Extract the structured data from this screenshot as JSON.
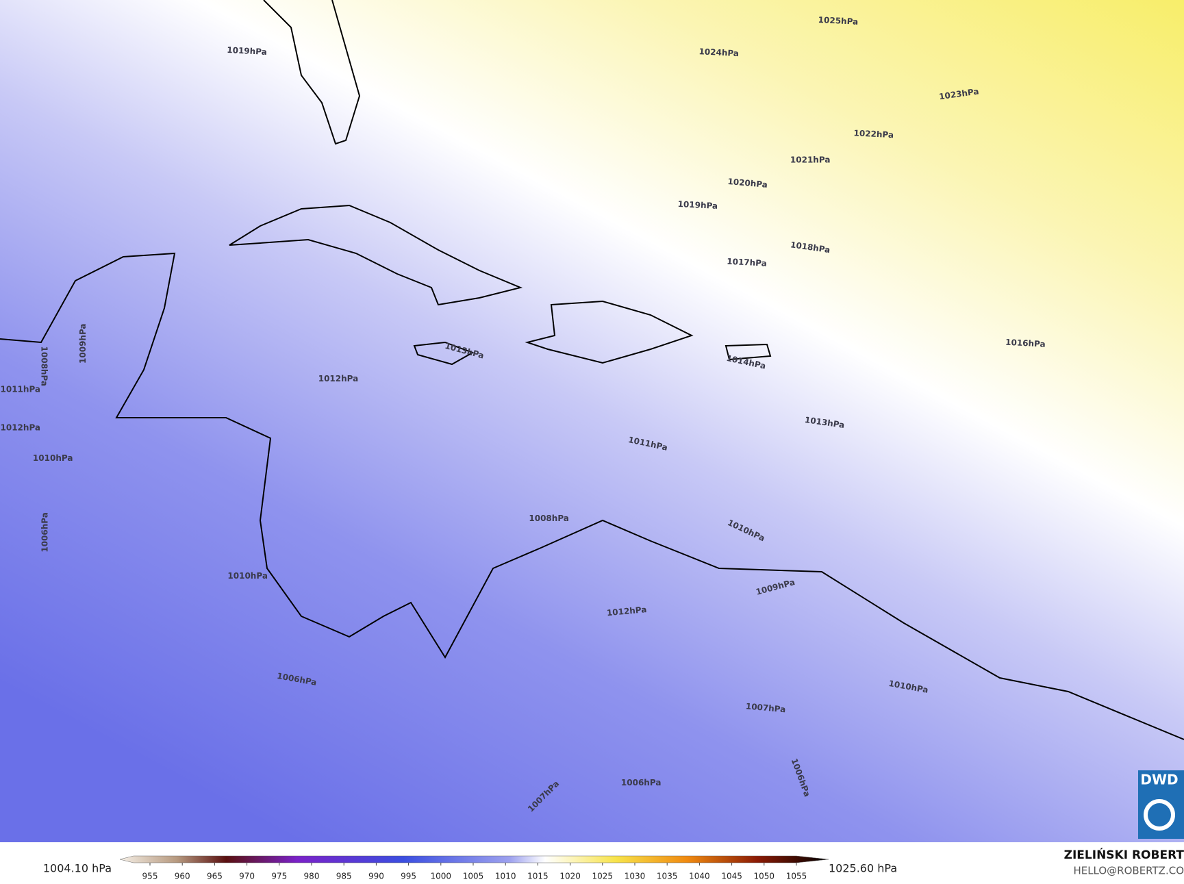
{
  "map": {
    "isobar_labels": [
      "1025hPa",
      "1024hPa",
      "1023hPa",
      "1022hPa",
      "1021hPa",
      "1020hPa",
      "1019hPa",
      "1019hPa",
      "1018hPa",
      "1017hPa",
      "1016hPa",
      "1014hPa",
      "1013hPa",
      "1013hPa",
      "1012hPa",
      "1011hPa",
      "1010hPa",
      "1008hPa",
      "1009hPa",
      "1012hPa",
      "1010hPa",
      "1007hPa",
      "1006hPa",
      "1006hPa",
      "1011hPa",
      "1012hPa",
      "1010hPa",
      "1010hPa",
      "1009hPa",
      "1008hPa",
      "1006hPa",
      "1007hPa",
      "1006hPa"
    ],
    "logo": "DWD"
  },
  "colorbar": {
    "min_label": "1004.10 hPa",
    "max_label": "1025.60 hPa",
    "ticks": [
      955,
      960,
      965,
      970,
      975,
      980,
      985,
      990,
      995,
      1000,
      1005,
      1010,
      1015,
      1020,
      1025,
      1030,
      1035,
      1040,
      1045,
      1050,
      1055
    ]
  },
  "credits": {
    "author": "ZIELIŃSKI ROBERT",
    "email": "HELLO@ROBERTZ.CO"
  }
}
